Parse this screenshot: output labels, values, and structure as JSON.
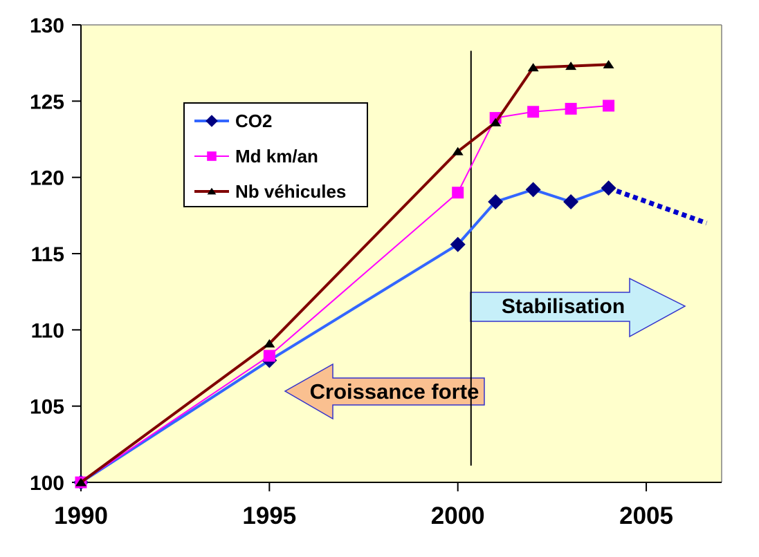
{
  "chart_data": {
    "type": "line",
    "title": "",
    "plot_bg": "#FFFFCC",
    "outer_bg": "#FFFFFF",
    "border_color": "#808080",
    "axis_color": "#000000",
    "xlim": [
      1990,
      2007
    ],
    "ylim": [
      100,
      130
    ],
    "x_ticks": [
      1990,
      1995,
      2000,
      2005
    ],
    "y_ticks": [
      100,
      105,
      110,
      115,
      120,
      125,
      130
    ],
    "grid": "off",
    "x": [
      1990,
      1995,
      2000,
      2001,
      2002,
      2003,
      2004
    ],
    "series": [
      {
        "name": "CO2",
        "line_color": "#3366FF",
        "marker": "diamond",
        "marker_color": "#000080",
        "values": [
          100,
          108,
          115.6,
          118.4,
          119.2,
          118.4,
          119.3
        ]
      },
      {
        "name": "Md km/an",
        "line_color": "#FF00FF",
        "marker": "square",
        "marker_color": "#FF00FF",
        "values": [
          100,
          108.3,
          119,
          123.9,
          124.3,
          124.5,
          124.7
        ]
      },
      {
        "name": "Nb véhicules",
        "line_color": "#800000",
        "marker": "triangle",
        "marker_color": "#000000",
        "values": [
          100,
          109.1,
          121.7,
          123.6,
          127.2,
          127.3,
          127.4
        ]
      }
    ],
    "projection": {
      "series": "CO2",
      "style": "dotted",
      "color": "#0000CC",
      "from_x": 2004,
      "from_y": 119.3,
      "to_x": 2006.6,
      "to_y": 117
    },
    "event_line": {
      "x": 2000.35,
      "y_from": 101.1,
      "y_to": 128.3,
      "color": "#000000"
    },
    "legend": {
      "position": "inside-top-left",
      "entries": [
        "CO2",
        "Md km/an",
        "Nb véhicules"
      ]
    },
    "annotations": [
      {
        "text": "Croissance forte",
        "shape": "arrow-left",
        "fill": "#FAC090",
        "border": "#3333CC"
      },
      {
        "text": "Stabilisation",
        "shape": "arrow-right",
        "fill": "#C6EFF9",
        "border": "#3333CC"
      }
    ]
  }
}
